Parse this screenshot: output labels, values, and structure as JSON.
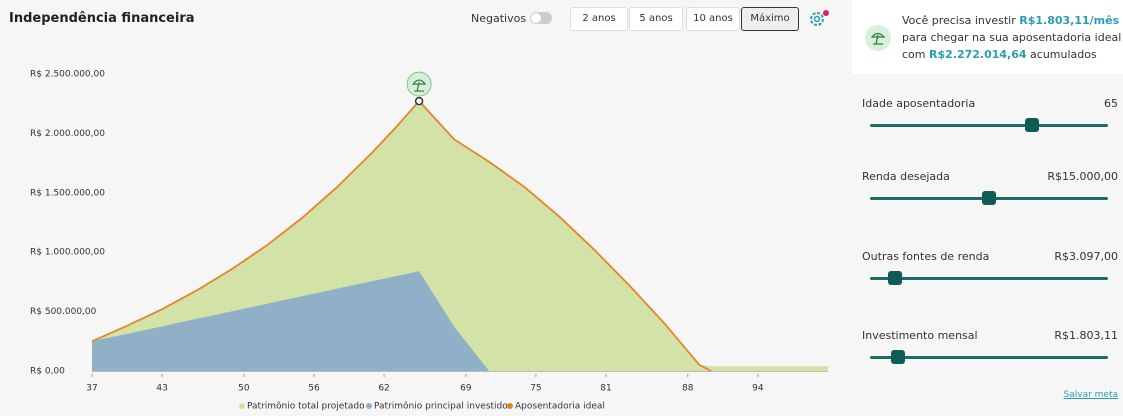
{
  "header": {
    "title": "Independência financeira",
    "toggle_label": "Negativos",
    "ranges": [
      "2 anos",
      "5 anos",
      "10 anos",
      "Máximo"
    ],
    "selected_range_index": 3
  },
  "chart_data": {
    "type": "area",
    "x": [
      37,
      40,
      43,
      46,
      49,
      52,
      55,
      58,
      61,
      63,
      65,
      68,
      71,
      74,
      77,
      80,
      83,
      86,
      89,
      90,
      95,
      100
    ],
    "series": [
      {
        "name": "Patrimônio total projetado",
        "color": "#d3e2a6",
        "kind": "area",
        "values": [
          250000,
          380000,
          520000,
          680000,
          860000,
          1060000,
          1290000,
          1550000,
          1840000,
          2050000,
          2272014.64,
          1950000,
          1760000,
          1550000,
          1300000,
          1020000,
          720000,
          400000,
          50000,
          40000,
          40000,
          40000
        ]
      },
      {
        "name": "Patrimônio principal investido",
        "color": "#8fb0c6",
        "kind": "area",
        "values": [
          250000,
          313000,
          376000,
          440000,
          503000,
          566000,
          630000,
          693000,
          756000,
          798000,
          840000,
          373000,
          0,
          0,
          0,
          0,
          0,
          0,
          0,
          0,
          0,
          0
        ]
      },
      {
        "name": "Aposentadoria ideal",
        "color": "#e8832a",
        "kind": "line",
        "values": [
          250000,
          380000,
          520000,
          680000,
          860000,
          1060000,
          1290000,
          1550000,
          1840000,
          2050000,
          2272014.64,
          1950000,
          1760000,
          1550000,
          1300000,
          1020000,
          720000,
          400000,
          50000,
          0,
          null,
          null
        ]
      }
    ],
    "xlim": [
      37,
      100
    ],
    "xticks": [
      37,
      43,
      50,
      56,
      62,
      69,
      75,
      81,
      88,
      94
    ],
    "ylim": [
      0,
      2500000
    ],
    "yticks": [
      {
        "value": 0,
        "label": "R$ 0,00"
      },
      {
        "value": 500000,
        "label": "R$ 500.000,00"
      },
      {
        "value": 1000000,
        "label": "R$ 1.000.000,00"
      },
      {
        "value": 1500000,
        "label": "R$ 1.500.000,00"
      },
      {
        "value": 2000000,
        "label": "R$ 2.000.000,00"
      },
      {
        "value": 2500000,
        "label": "R$ 2.500.000,00"
      }
    ],
    "peak_index": 10
  },
  "summary": {
    "intro": "Você precisa investir",
    "monthly": "R$1.803,11/mês",
    "middle": "para chegar na sua aposentadoria ideal",
    "prefix": "com",
    "total": "R$2.272.014,64",
    "suffix": "acumulados"
  },
  "sliders": [
    {
      "label": "Idade aposentadoria",
      "value": "65"
    },
    {
      "label": "Renda desejada",
      "value": "R$15.000,00"
    },
    {
      "label": "Outras fontes de renda",
      "value": "R$3.097,00"
    },
    {
      "label": "Investimento mensal",
      "value": "R$1.803,11"
    }
  ],
  "save_link": "Salvar meta"
}
